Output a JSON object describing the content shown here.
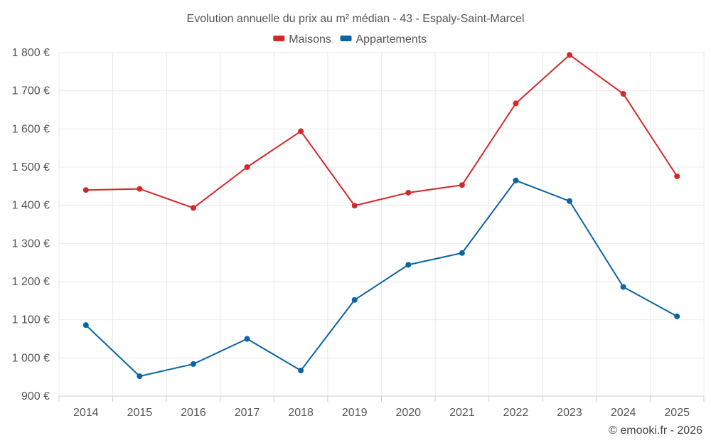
{
  "chart_data": {
    "type": "line",
    "title": "Evolution annuelle du prix au m² médian - 43 - Espaly-Saint-Marcel",
    "categories": [
      "2014",
      "2015",
      "2016",
      "2017",
      "2018",
      "2019",
      "2020",
      "2021",
      "2022",
      "2023",
      "2024",
      "2025"
    ],
    "series": [
      {
        "name": "Maisons",
        "color": "#d62728",
        "values": [
          1440,
          1443,
          1393,
          1500,
          1594,
          1399,
          1433,
          1453,
          1667,
          1794,
          1692,
          1476
        ]
      },
      {
        "name": "Appartements",
        "color": "#0a64a0",
        "values": [
          1086,
          952,
          984,
          1050,
          967,
          1152,
          1244,
          1275,
          1465,
          1411,
          1186,
          1109
        ]
      }
    ],
    "ylim": [
      900,
      1800
    ],
    "yticks": [
      900,
      1000,
      1100,
      1200,
      1300,
      1400,
      1500,
      1600,
      1700,
      1800
    ],
    "ytick_labels": [
      "900 €",
      "1 000 €",
      "1 100 €",
      "1 200 €",
      "1 300 €",
      "1 400 €",
      "1 500 €",
      "1 600 €",
      "1 700 €",
      "1 800 €"
    ],
    "xlabel": "",
    "ylabel": "",
    "grid": true,
    "legend": "top-center",
    "credit": "© emooki.fr - 2026"
  }
}
